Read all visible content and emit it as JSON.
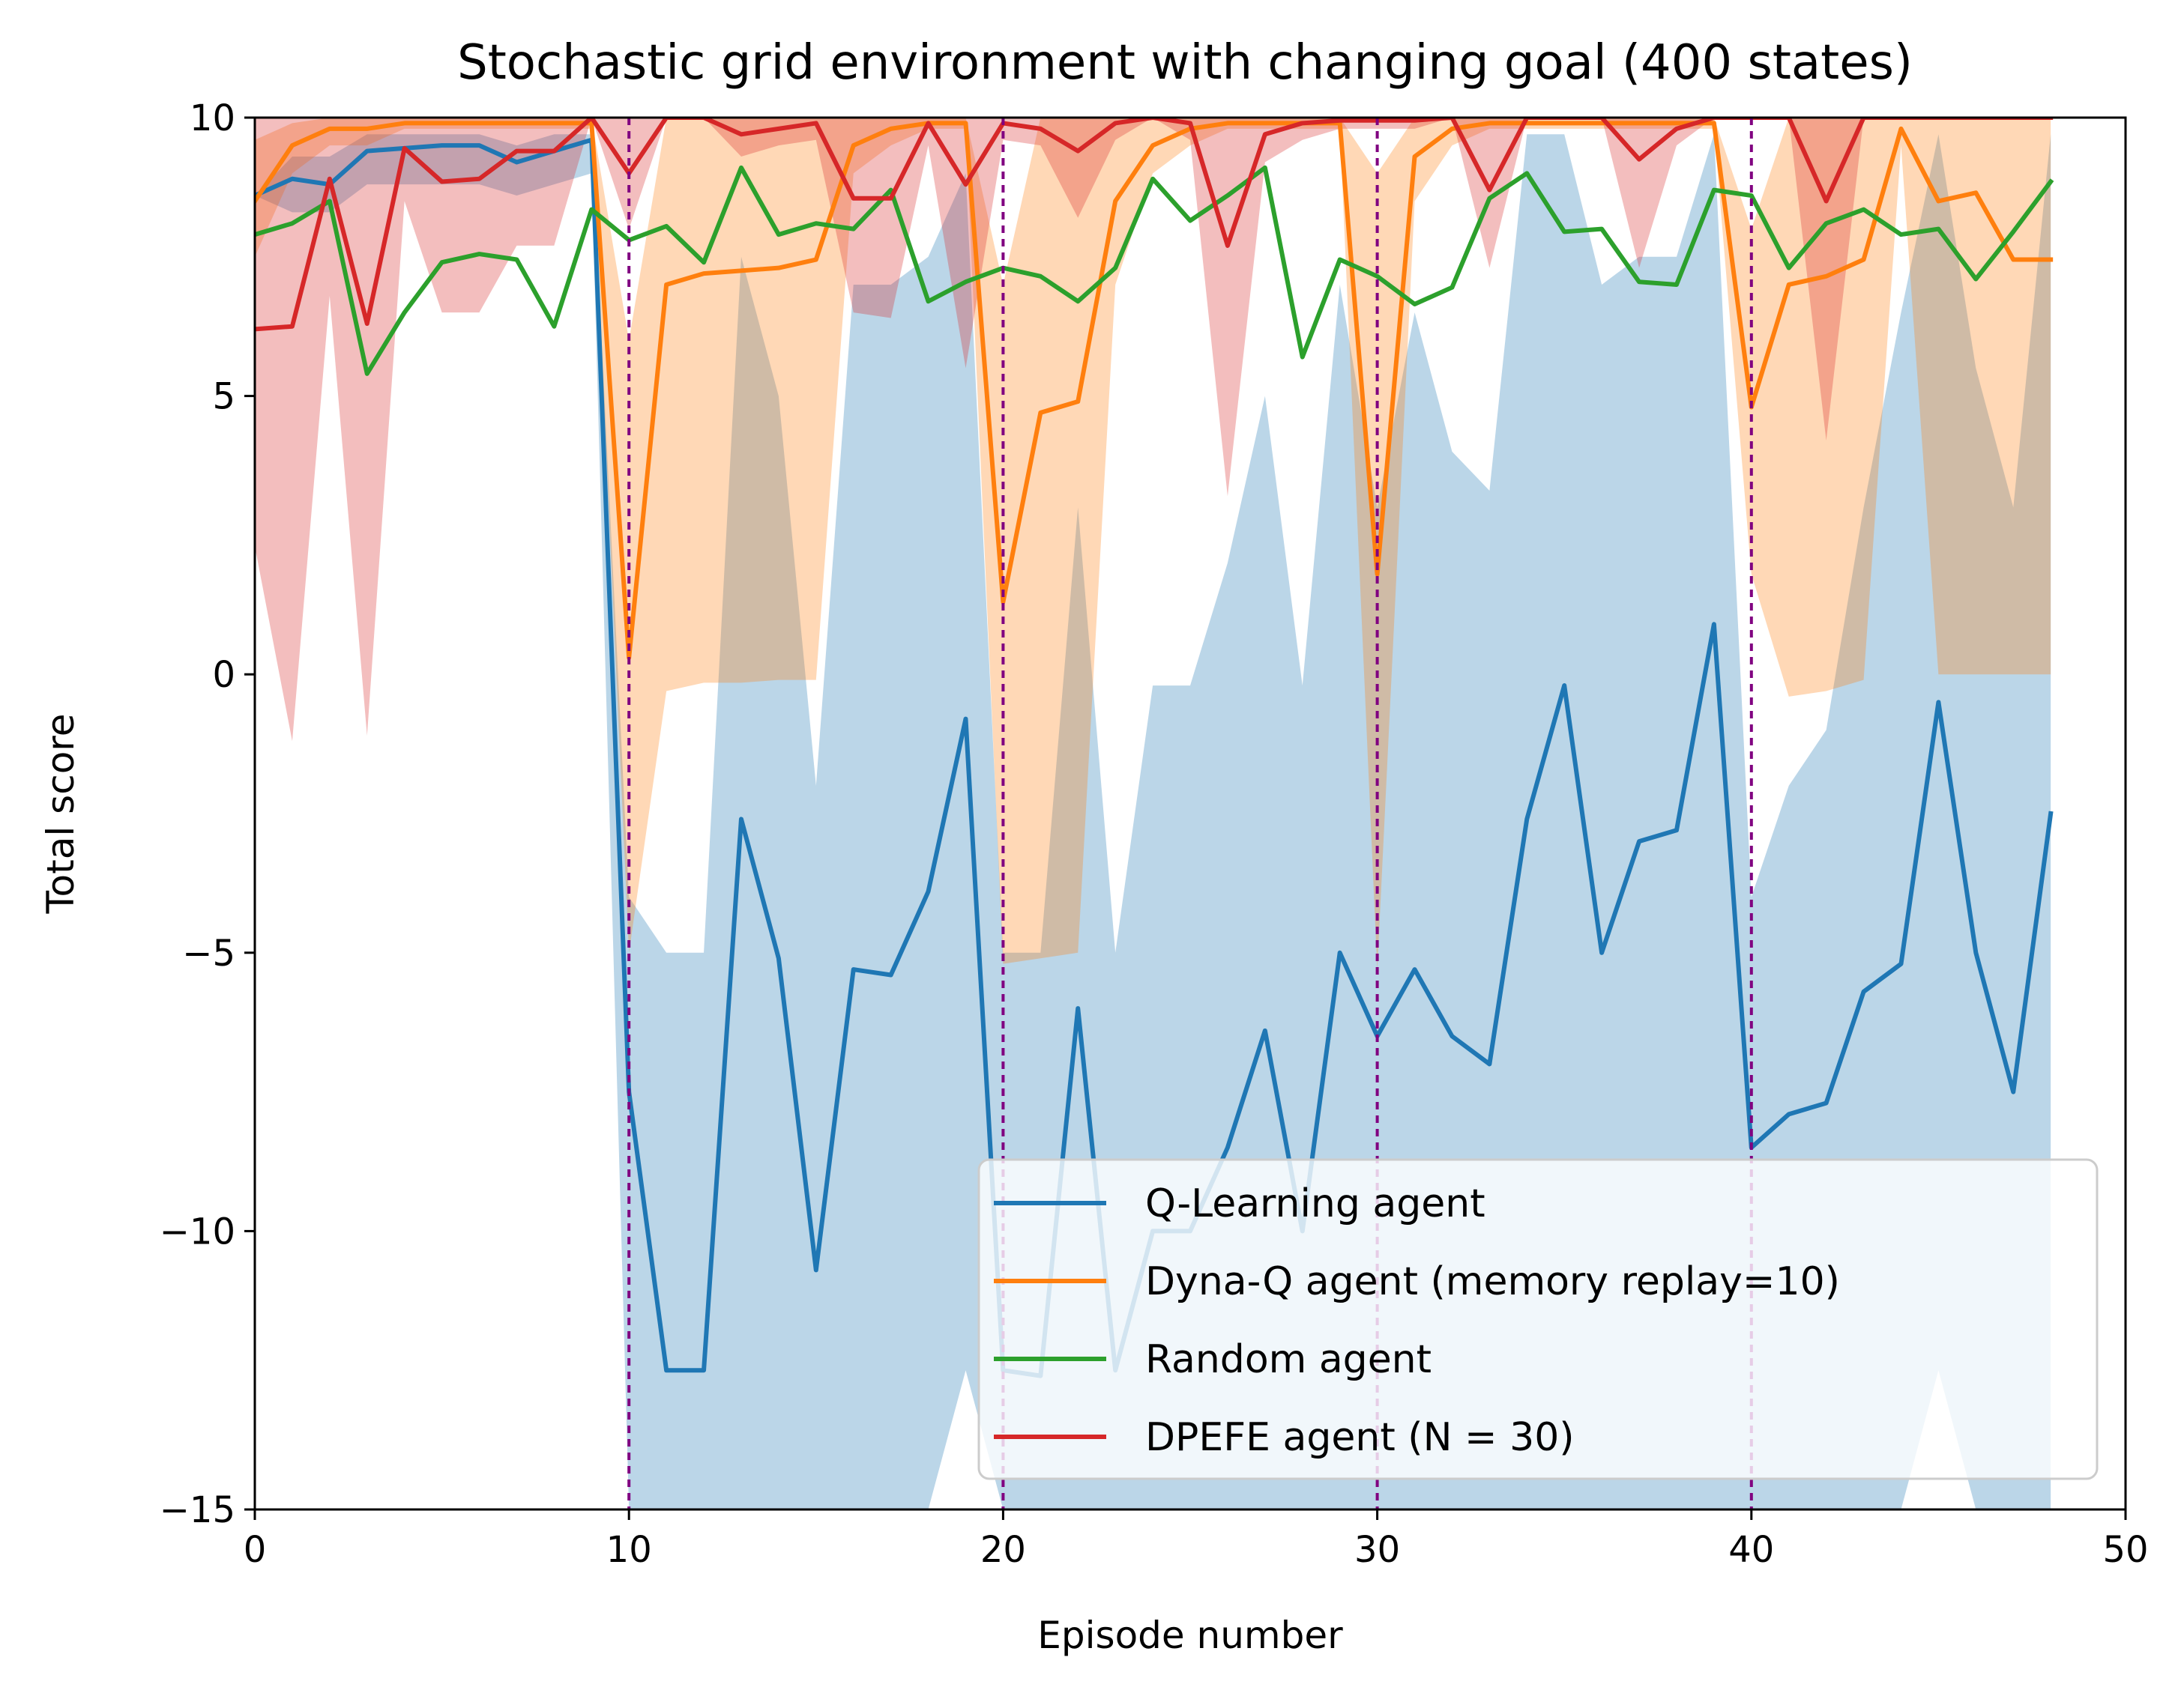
{
  "chart_data": {
    "type": "line",
    "title": "Stochastic grid environment with changing goal (400 states)",
    "xlabel": "Episode number",
    "ylabel": "Total score",
    "xlim": [
      0,
      50
    ],
    "ylim": [
      -15,
      10
    ],
    "xticks": [
      "0",
      "10",
      "20",
      "30",
      "40",
      "50"
    ],
    "yticks": [
      "−15",
      "−10",
      "−5",
      "0",
      "5",
      "10"
    ],
    "xtick_values": [
      0,
      10,
      20,
      30,
      40,
      50
    ],
    "ytick_values": [
      -15,
      -10,
      -5,
      0,
      5,
      10
    ],
    "grid": false,
    "legend_position": "lower-right",
    "goal_change_episodes": [
      10,
      20,
      30,
      40
    ],
    "goal_change_color": "#800080",
    "series": [
      {
        "name": "Q-Learning agent",
        "color": "#1f77b4",
        "x": [
          0,
          1,
          2,
          3,
          4,
          5,
          6,
          7,
          8,
          9,
          10,
          11,
          12,
          13,
          14,
          15,
          16,
          17,
          18,
          19,
          20,
          21,
          22,
          23,
          24,
          25,
          26,
          27,
          28,
          29,
          30,
          31,
          32,
          33,
          34,
          35,
          36,
          37,
          38,
          39,
          40,
          41,
          42,
          43,
          44,
          45,
          46,
          47,
          48
        ],
        "values": [
          8.6,
          8.9,
          8.8,
          9.4,
          9.45,
          9.5,
          9.5,
          9.2,
          9.4,
          9.6,
          -7.5,
          -12.5,
          -12.5,
          -2.6,
          -5.1,
          -10.7,
          -5.3,
          -5.4,
          -3.9,
          -0.8,
          -12.5,
          -12.6,
          -6.0,
          -12.5,
          -10.0,
          -10.0,
          -8.5,
          -6.4,
          -10.0,
          -5.0,
          -6.5,
          -5.3,
          -6.5,
          -7.0,
          -2.6,
          -0.2,
          -5.0,
          -3.0,
          -2.8,
          0.9,
          -8.5,
          -7.9,
          -7.7,
          -5.7,
          -5.2,
          -0.5,
          -5.0,
          -7.5,
          -2.5
        ],
        "upper": [
          8.6,
          9.3,
          9.3,
          9.7,
          9.7,
          9.7,
          9.7,
          9.5,
          9.7,
          9.7,
          -4.0,
          -5.0,
          -5.0,
          7.5,
          5.0,
          -2.0,
          7.0,
          7.0,
          7.5,
          9.0,
          -5.0,
          -5.0,
          3.0,
          -5.0,
          -0.2,
          -0.2,
          2.0,
          5.0,
          -0.2,
          7.0,
          3.0,
          6.5,
          4.0,
          3.3,
          9.7,
          9.7,
          7.0,
          7.5,
          7.5,
          9.7,
          -4.0,
          -2.0,
          -1.0,
          3.0,
          6.5,
          9.7,
          5.5,
          3.0,
          9.7
        ],
        "lower": [
          8.6,
          8.3,
          8.3,
          8.8,
          8.8,
          8.8,
          8.8,
          8.6,
          8.8,
          9.0,
          -15,
          -15,
          -15,
          -15,
          -15,
          -15,
          -15,
          -15,
          -15,
          -12.5,
          -15,
          -15,
          -15,
          -15,
          -15,
          -15,
          -15,
          -15,
          -15,
          -15,
          -15,
          -15,
          -15,
          -15,
          -15,
          -15,
          -15,
          -15,
          -15,
          -15,
          -15,
          -15,
          -15,
          -15,
          -15,
          -12.5,
          -15,
          -15,
          -15
        ]
      },
      {
        "name": "Dyna-Q agent (memory replay=10)",
        "color": "#ff7f0e",
        "x": [
          0,
          1,
          2,
          3,
          4,
          5,
          6,
          7,
          8,
          9,
          10,
          11,
          12,
          13,
          14,
          15,
          16,
          17,
          18,
          19,
          20,
          21,
          22,
          23,
          24,
          25,
          26,
          27,
          28,
          29,
          30,
          31,
          32,
          33,
          34,
          35,
          36,
          37,
          38,
          39,
          40,
          41,
          42,
          43,
          44,
          45,
          46,
          47,
          48
        ],
        "values": [
          8.5,
          9.5,
          9.8,
          9.8,
          9.9,
          9.9,
          9.9,
          9.9,
          9.9,
          9.9,
          0.3,
          7.0,
          7.2,
          7.25,
          7.3,
          7.45,
          9.5,
          9.8,
          9.9,
          9.9,
          1.3,
          4.7,
          4.9,
          8.5,
          9.5,
          9.8,
          9.9,
          9.9,
          9.9,
          9.9,
          1.8,
          9.3,
          9.8,
          9.9,
          9.9,
          9.9,
          9.9,
          9.9,
          9.9,
          9.9,
          4.8,
          7.0,
          7.15,
          7.45,
          9.8,
          8.5,
          8.65,
          7.45,
          7.45
        ],
        "upper": [
          9.6,
          9.9,
          10,
          10,
          10,
          10,
          10,
          10,
          10,
          10,
          6.0,
          10,
          10,
          10,
          10,
          10,
          10,
          10,
          10,
          10,
          7.0,
          10,
          10,
          10,
          10,
          10,
          10,
          10,
          10,
          10,
          9.0,
          10,
          10,
          10,
          10,
          10,
          10,
          10,
          10,
          10,
          8.0,
          10,
          10,
          10,
          10,
          10,
          10,
          10,
          10
        ],
        "lower": [
          7.5,
          9.0,
          9.5,
          9.5,
          9.8,
          9.8,
          9.8,
          9.8,
          9.8,
          9.8,
          -5.0,
          -0.3,
          -0.15,
          -0.15,
          -0.1,
          -0.1,
          9.0,
          9.5,
          9.8,
          9.8,
          -5.2,
          -5.1,
          -5.0,
          7.0,
          9.0,
          9.5,
          9.8,
          9.8,
          9.8,
          9.8,
          -5.3,
          8.5,
          9.5,
          9.8,
          9.8,
          9.8,
          9.8,
          9.8,
          9.8,
          9.8,
          1.8,
          -0.4,
          -0.3,
          -0.1,
          9.5,
          0.0,
          0.0,
          0.0,
          0.0
        ]
      },
      {
        "name": "Random agent",
        "color": "#2ca02c",
        "x": [
          0,
          1,
          2,
          3,
          4,
          5,
          6,
          7,
          8,
          9,
          10,
          11,
          12,
          13,
          14,
          15,
          16,
          17,
          18,
          19,
          20,
          21,
          22,
          23,
          24,
          25,
          26,
          27,
          28,
          29,
          30,
          31,
          32,
          33,
          34,
          35,
          36,
          37,
          38,
          39,
          40,
          41,
          42,
          43,
          44,
          45,
          46,
          47,
          48
        ],
        "values": [
          7.9,
          8.1,
          8.5,
          5.4,
          6.5,
          7.4,
          7.55,
          7.45,
          6.25,
          8.35,
          7.8,
          8.05,
          7.4,
          9.1,
          7.9,
          8.1,
          8.0,
          8.7,
          6.7,
          7.05,
          7.3,
          7.15,
          6.7,
          7.3,
          8.9,
          8.15,
          8.6,
          9.1,
          5.7,
          7.45,
          7.15,
          6.65,
          6.95,
          8.55,
          9.0,
          7.95,
          8.0,
          7.05,
          7.0,
          8.7,
          8.6,
          7.3,
          8.1,
          8.35,
          7.9,
          8.0,
          7.1,
          7.95,
          8.85
        ],
        "upper": [],
        "lower": []
      },
      {
        "name": "DPEFE agent (N = 30)",
        "color": "#d62728",
        "x": [
          0,
          1,
          2,
          3,
          4,
          5,
          6,
          7,
          8,
          9,
          10,
          11,
          12,
          13,
          14,
          15,
          16,
          17,
          18,
          19,
          20,
          21,
          22,
          23,
          24,
          25,
          26,
          27,
          28,
          29,
          30,
          31,
          32,
          33,
          34,
          35,
          36,
          37,
          38,
          39,
          40,
          41,
          42,
          43,
          44,
          45,
          46,
          47,
          48
        ],
        "values": [
          6.2,
          6.25,
          8.9,
          6.3,
          9.45,
          8.85,
          8.9,
          9.4,
          9.4,
          10,
          9.0,
          10,
          10,
          9.7,
          9.8,
          9.9,
          8.55,
          8.55,
          9.9,
          8.8,
          9.9,
          9.8,
          9.4,
          9.9,
          10,
          9.9,
          7.7,
          9.7,
          9.9,
          9.95,
          9.95,
          9.95,
          10,
          8.7,
          10,
          10,
          10,
          9.25,
          9.8,
          10,
          10,
          10,
          8.5,
          10,
          10,
          10,
          10,
          10,
          10
        ],
        "upper": [
          10,
          10,
          10,
          10,
          10,
          10,
          10,
          10,
          10,
          10,
          10,
          10,
          10,
          10,
          10,
          10,
          10,
          10,
          10,
          10,
          10,
          10,
          10,
          10,
          10,
          10,
          10,
          10,
          10,
          10,
          10,
          10,
          10,
          10,
          10,
          10,
          10,
          10,
          10,
          10,
          10,
          10,
          10,
          10,
          10,
          10,
          10,
          10,
          10
        ],
        "lower": [
          2.3,
          -1.2,
          6.8,
          -1.1,
          8.5,
          6.5,
          6.5,
          7.7,
          7.7,
          10,
          8.0,
          10,
          10,
          9.3,
          9.5,
          9.6,
          6.5,
          6.4,
          9.5,
          5.5,
          9.6,
          9.5,
          8.2,
          9.6,
          10,
          9.6,
          3.2,
          9.2,
          9.6,
          9.8,
          9.8,
          9.8,
          10,
          7.3,
          10,
          10,
          10,
          7.3,
          9.5,
          10,
          10,
          10,
          4.2,
          10,
          10,
          10,
          10,
          10,
          10
        ]
      }
    ]
  }
}
